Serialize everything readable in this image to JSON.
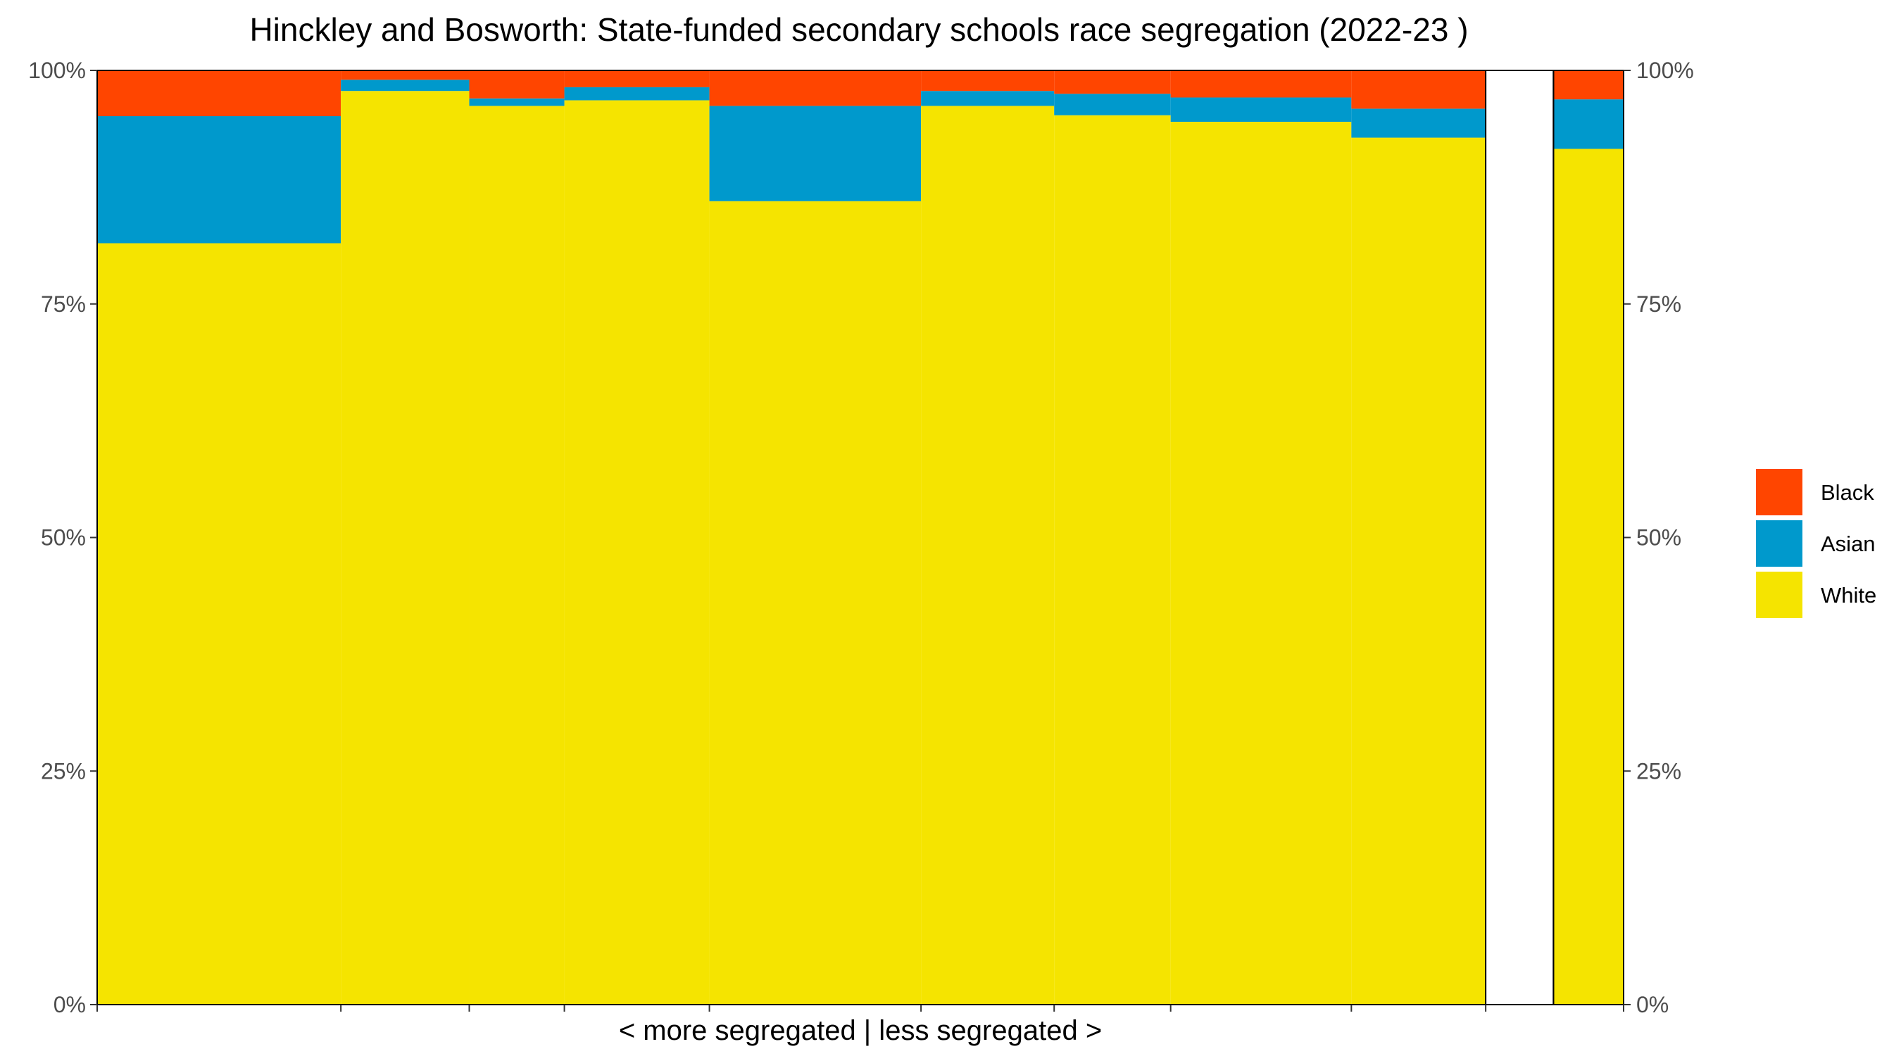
{
  "chart_data": {
    "type": "bar",
    "title": "Hinckley and Bosworth: State-funded secondary schools race segregation (2022-23 )",
    "xlabel": "< more segregated | less segregated >",
    "ylabel": "",
    "ylim": [
      0,
      1
    ],
    "y_ticks": [
      "0%",
      "25%",
      "50%",
      "75%",
      "100%"
    ],
    "legend_position": "right",
    "grid": false,
    "stacked": true,
    "variable_width": true,
    "colors": {
      "Black": "#FF4500",
      "Asian": "#0099CC",
      "White": "#F5E400"
    },
    "series_order_bottom_to_top": [
      "White",
      "Asian",
      "Black"
    ],
    "legend_order": [
      "Black",
      "Asian",
      "White"
    ],
    "schools": [
      {
        "width": 2.05,
        "White": 0.815,
        "Asian": 0.136,
        "Black": 0.049
      },
      {
        "width": 1.08,
        "White": 0.978,
        "Asian": 0.012,
        "Black": 0.01
      },
      {
        "width": 0.8,
        "White": 0.962,
        "Asian": 0.008,
        "Black": 0.03
      },
      {
        "width": 1.22,
        "White": 0.968,
        "Asian": 0.014,
        "Black": 0.018
      },
      {
        "width": 1.78,
        "White": 0.86,
        "Asian": 0.102,
        "Black": 0.038
      },
      {
        "width": 1.12,
        "White": 0.962,
        "Asian": 0.016,
        "Black": 0.022
      },
      {
        "width": 0.98,
        "White": 0.952,
        "Asian": 0.023,
        "Black": 0.025
      },
      {
        "width": 1.52,
        "White": 0.945,
        "Asian": 0.026,
        "Black": 0.029
      },
      {
        "width": 1.13,
        "White": 0.928,
        "Asian": 0.031,
        "Black": 0.041
      }
    ],
    "total": {
      "width": 0.59,
      "gap_width": 0.57,
      "White": 0.916,
      "Asian": 0.053,
      "Black": 0.031
    }
  }
}
